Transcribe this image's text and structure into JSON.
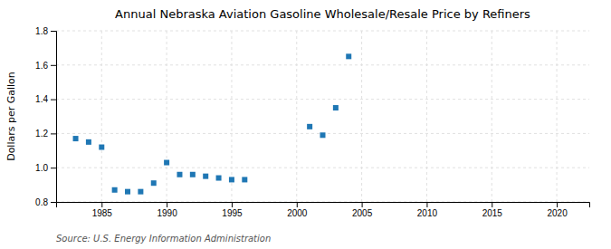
{
  "chart_data": {
    "type": "scatter",
    "title": "Annual Nebraska Aviation Gasoline Wholesale/Resale Price by Refiners",
    "y_label": "Dollars per Gallon",
    "annotations": [
      "Source: U.S. Energy Information Administration"
    ],
    "marker": "square",
    "x": [
      1983,
      1984,
      1985,
      1986,
      1987,
      1988,
      1989,
      1990,
      1991,
      1992,
      1993,
      1994,
      1995,
      1996,
      2001,
      2002,
      2003,
      2004
    ],
    "values": [
      1.17,
      1.15,
      1.12,
      0.87,
      0.86,
      0.86,
      0.91,
      1.03,
      0.96,
      0.96,
      0.95,
      0.94,
      0.93,
      0.93,
      1.24,
      1.19,
      1.35,
      1.65
    ],
    "xlim": [
      1981.5,
      2022.5
    ],
    "ylim": [
      0.8,
      1.8
    ],
    "xticks": [
      1985,
      1990,
      1995,
      2000,
      2005,
      2010,
      2015,
      2020
    ],
    "yticks": [
      0.8,
      {
        "value": 1.0,
        "label": "1.0"
      },
      1.2,
      1.4,
      1.6,
      1.8
    ],
    "grid": true
  }
}
